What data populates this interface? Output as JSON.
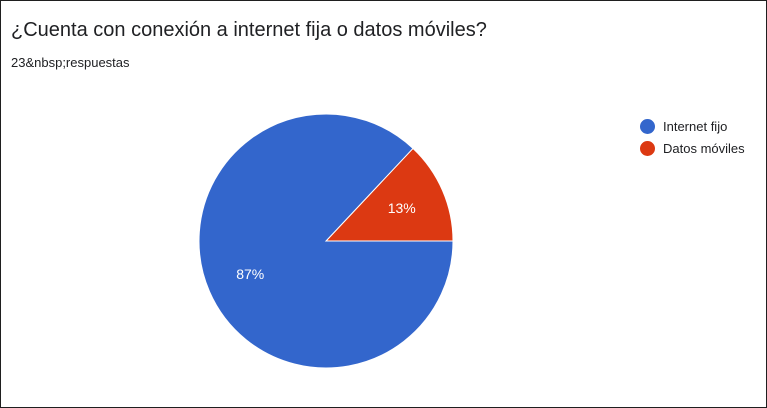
{
  "question": {
    "title": "¿Cuenta con conexión a internet fija o datos móviles?",
    "responses": "23&nbsp;respuestas"
  },
  "colors": {
    "internet_fijo": "#3366cc",
    "datos_moviles": "#dc3912"
  },
  "chart_data": {
    "type": "pie",
    "title": "¿Cuenta con conexión a internet fija o datos móviles?",
    "subtitle": "23&nbsp;respuestas",
    "legend_position": "right",
    "slices": [
      {
        "label": "Internet fijo",
        "value": 87,
        "display": "87%",
        "color": "#3366cc"
      },
      {
        "label": "Datos móviles",
        "value": 13,
        "display": "13%",
        "color": "#dc3912"
      }
    ]
  }
}
